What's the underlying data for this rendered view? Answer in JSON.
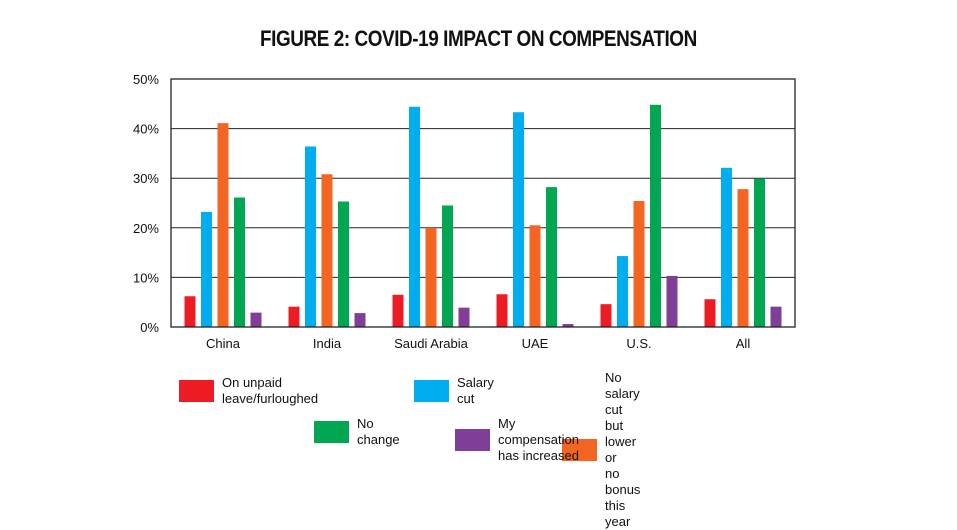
{
  "title": "FIGURE 2: COVID-19 IMPACT ON COMPENSATION",
  "chart_data": {
    "type": "bar",
    "title": "FIGURE 2: COVID-19 IMPACT ON COMPENSATION",
    "xlabel": "",
    "ylabel": "",
    "ylim": [
      0,
      50
    ],
    "y_ticks": [
      "0%",
      "10%",
      "20%",
      "30%",
      "40%",
      "50%"
    ],
    "y_tick_values": [
      0,
      10,
      20,
      30,
      40,
      50
    ],
    "grid": true,
    "legend_position": "bottom",
    "categories": [
      "China",
      "India",
      "Saudi Arabia",
      "UAE",
      "U.S.",
      "All"
    ],
    "series": [
      {
        "name": "On unpaid leave/furloughed",
        "color": "#ed1c24",
        "values": [
          6.2,
          4.1,
          6.5,
          6.6,
          4.6,
          5.6
        ]
      },
      {
        "name": "Salary cut",
        "color": "#00aeef",
        "values": [
          23.2,
          36.4,
          44.4,
          43.3,
          14.3,
          32.1
        ]
      },
      {
        "name": "No salary cut but lower or no bonus this year",
        "color": "#f26522",
        "values": [
          41.1,
          30.8,
          20.0,
          20.5,
          25.4,
          27.8
        ]
      },
      {
        "name": "No change",
        "color": "#00a651",
        "values": [
          26.1,
          25.3,
          24.5,
          28.2,
          44.8,
          29.9
        ]
      },
      {
        "name": "My compensation has increased",
        "color": "#7f3f98",
        "values": [
          2.9,
          2.8,
          3.9,
          0.6,
          10.3,
          4.1
        ]
      }
    ]
  },
  "legend": {
    "item0": "On unpaid leave/furloughed",
    "item1": "Salary cut",
    "item2_line1": "No salary cut but lower or",
    "item2_line2": "no bonus this year",
    "item3": "No change",
    "item4": "My compensation has increased"
  }
}
